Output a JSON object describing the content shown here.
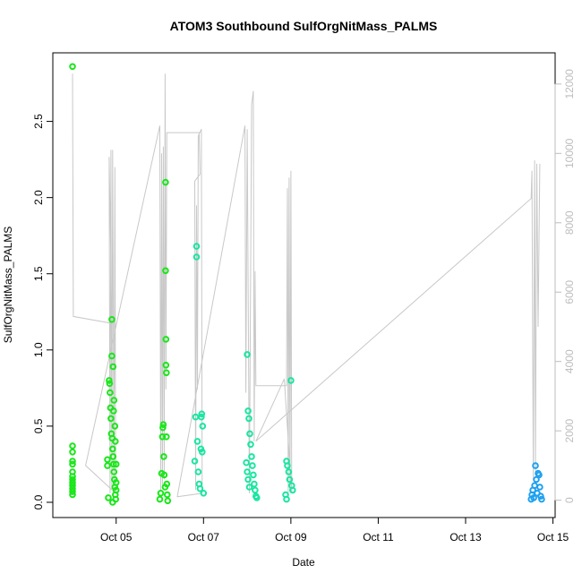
{
  "chart_data": {
    "type": "scatter",
    "title": "ATOM3 Southbound SulfOrgNitMass_PALMS",
    "xlabel": "Date",
    "ylabel": "SulfOrgNitMass_PALMS",
    "xlim": [
      3.55,
      15.05
    ],
    "ylim": [
      -0.1,
      2.95
    ],
    "x_ticks": [
      {
        "value": 5,
        "label": "Oct 05"
      },
      {
        "value": 7,
        "label": "Oct 07"
      },
      {
        "value": 9,
        "label": "Oct 09"
      },
      {
        "value": 11,
        "label": "Oct 11"
      },
      {
        "value": 13,
        "label": "Oct 13"
      },
      {
        "value": 15,
        "label": "Oct 15"
      }
    ],
    "y_ticks": [
      0.0,
      0.5,
      1.0,
      1.5,
      2.0,
      2.5
    ],
    "y_tick_labels": [
      "0.0",
      "0.5",
      "1.0",
      "1.5",
      "2.0",
      "2.5"
    ],
    "y2_lim": [
      -500,
      12900
    ],
    "y2_ticks": [
      0,
      2000,
      4000,
      6000,
      8000,
      10000,
      12000
    ],
    "y2_tick_labels": [
      "0",
      "2000",
      "4000",
      "6000",
      "8000",
      "10000",
      "12000"
    ],
    "colors": {
      "points_early": "#19e619",
      "points_mid": "#19e6a0",
      "points_late": "#1ea0f0",
      "altitude_line": "#c8c8c8",
      "axis_secondary": "#bdbdbd"
    },
    "altitude_series": [
      [
        4.0,
        12300
      ],
      [
        4.02,
        5300
      ],
      [
        4.9,
        5100
      ],
      [
        4.84,
        9900
      ],
      [
        4.86,
        200
      ],
      [
        4.88,
        10100
      ],
      [
        4.9,
        300
      ],
      [
        4.92,
        10100
      ],
      [
        4.95,
        400
      ],
      [
        4.97,
        9600
      ],
      [
        4.99,
        200
      ],
      [
        4.3,
        1000
      ],
      [
        6.0,
        10800
      ],
      [
        6.02,
        300
      ],
      [
        6.04,
        10000
      ],
      [
        6.06,
        400
      ],
      [
        6.08,
        10200
      ],
      [
        6.1,
        600
      ],
      [
        6.12,
        12300
      ],
      [
        6.14,
        3200
      ],
      [
        6.16,
        10600
      ],
      [
        6.9,
        10600
      ],
      [
        6.92,
        9400
      ],
      [
        6.8,
        9200
      ],
      [
        6.82,
        300
      ],
      [
        6.84,
        8500
      ],
      [
        6.86,
        3200
      ],
      [
        6.88,
        10500
      ],
      [
        6.95,
        10700
      ],
      [
        6.97,
        200
      ],
      [
        6.4,
        100
      ],
      [
        7.95,
        10800
      ],
      [
        7.97,
        3100
      ],
      [
        8.0,
        10700
      ],
      [
        8.05,
        200
      ],
      [
        8.1,
        11400
      ],
      [
        8.14,
        11800
      ],
      [
        8.16,
        1700
      ],
      [
        8.18,
        6600
      ],
      [
        8.2,
        3300
      ],
      [
        8.9,
        3300
      ],
      [
        8.92,
        9000
      ],
      [
        8.94,
        200
      ],
      [
        8.96,
        9300
      ],
      [
        8.98,
        400
      ],
      [
        9.0,
        9500
      ],
      [
        9.02,
        200
      ],
      [
        8.85,
        3500
      ],
      [
        8.2,
        1700
      ],
      [
        14.5,
        8700
      ],
      [
        14.52,
        9500
      ],
      [
        14.55,
        600
      ],
      [
        14.58,
        9800
      ],
      [
        14.6,
        800
      ],
      [
        14.63,
        9700
      ],
      [
        14.66,
        5000
      ],
      [
        14.7,
        9700
      ]
    ],
    "series": [
      {
        "values": [
          [
            4.0,
            2.86
          ],
          [
            4.0,
            0.37
          ],
          [
            4.0,
            0.33
          ],
          [
            4.0,
            0.27
          ],
          [
            4.0,
            0.25
          ],
          [
            4.0,
            0.2
          ],
          [
            4.0,
            0.17
          ],
          [
            4.0,
            0.15
          ],
          [
            4.0,
            0.13
          ],
          [
            4.0,
            0.11
          ],
          [
            4.0,
            0.09
          ],
          [
            4.0,
            0.07
          ],
          [
            4.0,
            0.05
          ],
          [
            4.8,
            0.28
          ],
          [
            4.8,
            0.24
          ],
          [
            4.82,
            0.03
          ],
          [
            4.84,
            0.8
          ],
          [
            4.85,
            0.78
          ],
          [
            4.86,
            0.72
          ],
          [
            4.87,
            0.62
          ],
          [
            4.88,
            0.55
          ],
          [
            4.89,
            0.45
          ],
          [
            4.9,
            0.96
          ],
          [
            4.9,
            1.2
          ],
          [
            4.91,
            0.42
          ],
          [
            4.92,
            0.35
          ],
          [
            4.93,
            0.89
          ],
          [
            4.93,
            0.3
          ],
          [
            4.94,
            0.25
          ],
          [
            4.95,
            0.2
          ],
          [
            4.96,
            0.15
          ],
          [
            4.97,
            0.1
          ],
          [
            4.98,
            0.05
          ],
          [
            4.99,
            0.02
          ],
          [
            4.92,
            0.0
          ],
          [
            4.94,
            0.6
          ],
          [
            4.95,
            0.67
          ],
          [
            4.97,
            0.5
          ],
          [
            4.98,
            0.4
          ],
          [
            5.0,
            0.25
          ],
          [
            5.0,
            0.13
          ],
          [
            5.0,
            0.08
          ],
          [
            6.0,
            0.02
          ],
          [
            6.02,
            0.06
          ],
          [
            6.04,
            0.19
          ],
          [
            6.06,
            0.43
          ],
          [
            6.07,
            0.49
          ],
          [
            6.08,
            0.51
          ],
          [
            6.09,
            0.3
          ],
          [
            6.1,
            0.18
          ],
          [
            6.12,
            0.1
          ],
          [
            6.13,
            2.1
          ],
          [
            6.13,
            1.52
          ],
          [
            6.14,
            1.07
          ],
          [
            6.14,
            0.9
          ],
          [
            6.15,
            0.85
          ],
          [
            6.15,
            0.43
          ],
          [
            6.16,
            0.12
          ],
          [
            6.17,
            0.05
          ],
          [
            6.18,
            0.01
          ]
        ]
      },
      {
        "values": [
          [
            6.8,
            0.27
          ],
          [
            6.82,
            0.56
          ],
          [
            6.84,
            1.68
          ],
          [
            6.84,
            1.61
          ],
          [
            6.86,
            0.4
          ],
          [
            6.88,
            0.2
          ],
          [
            6.9,
            0.12
          ],
          [
            6.92,
            0.09
          ],
          [
            6.94,
            0.35
          ],
          [
            6.95,
            0.56
          ],
          [
            6.96,
            0.58
          ],
          [
            6.97,
            0.33
          ],
          [
            6.98,
            0.5
          ],
          [
            7.0,
            0.06
          ],
          [
            8.0,
            0.97
          ],
          [
            8.02,
            0.6
          ],
          [
            8.04,
            0.55
          ],
          [
            8.06,
            0.45
          ],
          [
            8.08,
            0.38
          ],
          [
            8.1,
            0.3
          ],
          [
            8.12,
            0.24
          ],
          [
            8.14,
            0.18
          ],
          [
            8.16,
            0.12
          ],
          [
            8.18,
            0.08
          ],
          [
            8.2,
            0.04
          ],
          [
            8.22,
            0.03
          ],
          [
            7.98,
            0.26
          ],
          [
            8.0,
            0.2
          ],
          [
            8.02,
            0.15
          ],
          [
            8.05,
            0.1
          ],
          [
            8.9,
            0.27
          ],
          [
            8.92,
            0.24
          ],
          [
            8.95,
            0.2
          ],
          [
            8.97,
            0.15
          ],
          [
            9.0,
            0.8
          ],
          [
            9.02,
            0.11
          ],
          [
            9.04,
            0.08
          ],
          [
            8.88,
            0.05
          ],
          [
            8.9,
            0.02
          ]
        ]
      },
      {
        "values": [
          [
            14.5,
            0.02
          ],
          [
            14.52,
            0.05
          ],
          [
            14.54,
            0.08
          ],
          [
            14.56,
            0.03
          ],
          [
            14.58,
            0.11
          ],
          [
            14.6,
            0.24
          ],
          [
            14.62,
            0.15
          ],
          [
            14.64,
            0.06
          ],
          [
            14.66,
            0.19
          ],
          [
            14.68,
            0.18
          ],
          [
            14.7,
            0.1
          ],
          [
            14.72,
            0.04
          ],
          [
            14.74,
            0.02
          ]
        ]
      }
    ]
  }
}
